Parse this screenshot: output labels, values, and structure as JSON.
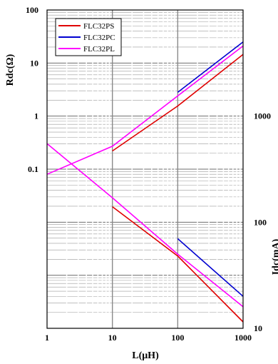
{
  "chart_data": {
    "type": "line",
    "xlabel": "L(μH)",
    "ylabel_left": "Rdc(Ω)",
    "ylabel_right": "Idc(mA)",
    "x_scale": "log",
    "y_scale": "log",
    "xlim": [
      1,
      1000
    ],
    "ylim_left": [
      0.0001,
      100
    ],
    "ylim_right": [
      10,
      10000
    ],
    "x_ticks": [
      "1",
      "10",
      "100",
      "1000"
    ],
    "y_ticks_left": [
      "100",
      "10",
      "1",
      "0.1"
    ],
    "y_ticks_right": [
      "1000",
      "100",
      "10"
    ],
    "grid": true,
    "legend": "top-left",
    "legend_entries": [
      "FLC32PS",
      "FLC32PC",
      "FLC32PL"
    ],
    "series": [
      {
        "name": "FLC32PS",
        "color": "#e00000",
        "axis": "left",
        "x": [
          10,
          100,
          1000
        ],
        "y": [
          0.22,
          1.55,
          14.5
        ]
      },
      {
        "name": "FLC32PC",
        "color": "#0000d0",
        "axis": "left",
        "x": [
          100,
          1000
        ],
        "y": [
          2.8,
          25
        ]
      },
      {
        "name": "FLC32PL",
        "color": "#ff00ff",
        "axis": "left",
        "x": [
          1,
          10,
          100,
          1000
        ],
        "y": [
          0.08,
          0.27,
          2.4,
          21
        ]
      },
      {
        "name": "FLC32PS",
        "color": "#e00000",
        "axis": "right",
        "x": [
          10,
          100,
          1000
        ],
        "y": [
          140,
          48,
          11.5
        ]
      },
      {
        "name": "FLC32PC",
        "color": "#0000d0",
        "axis": "right",
        "x": [
          100,
          1000
        ],
        "y": [
          70,
          20
        ]
      },
      {
        "name": "FLC32PL",
        "color": "#ff00ff",
        "axis": "right",
        "x": [
          1,
          10,
          100,
          1000
        ],
        "y": [
          550,
          170,
          50,
          16
        ]
      }
    ]
  }
}
